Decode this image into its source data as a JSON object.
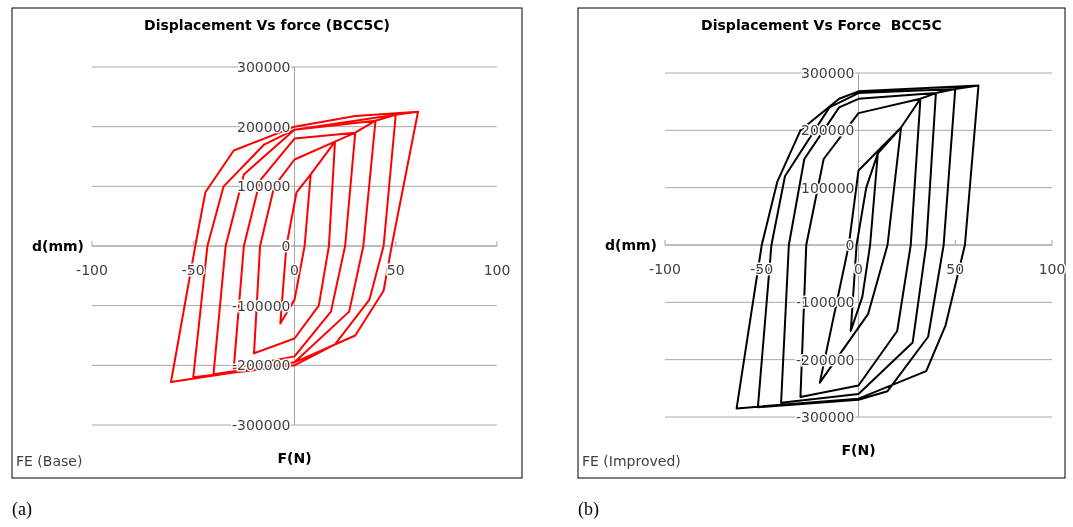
{
  "chart_data": [
    {
      "type": "line",
      "title": "Displacement Vs force (BCC5C)",
      "xlabel": "F(N)",
      "ylabel": "d(mm)",
      "annotations": [
        "FE (Base)",
        "(a)"
      ],
      "grid": "y",
      "xlim": [
        -100,
        100
      ],
      "ylim": [
        -300000,
        300000
      ],
      "xticks": [
        -100,
        -50,
        0,
        50,
        100
      ],
      "yticks": [
        -300000,
        -200000,
        -100000,
        0,
        100000,
        200000,
        300000
      ],
      "series": [
        {
          "color": "#ff0000",
          "x": [
            8,
            5,
            0,
            -7,
            -4,
            1,
            8,
            20,
            17,
            12,
            0,
            -20,
            -17,
            -10,
            0,
            20,
            30,
            25,
            18,
            0,
            -30,
            -25,
            -17,
            0,
            30,
            40,
            34,
            27,
            0,
            -40,
            -34,
            -25,
            0,
            40,
            50,
            44,
            37,
            20,
            0,
            -50,
            -43,
            -35,
            -15,
            0,
            50,
            61,
            48,
            44,
            30,
            0,
            -30,
            -61,
            -49,
            -44,
            -30,
            0,
            30,
            61
          ],
          "values": [
            120000,
            0,
            -90000,
            -130000,
            0,
            90000,
            120000,
            175000,
            0,
            -100000,
            -155000,
            -180000,
            0,
            100000,
            145000,
            175000,
            190000,
            0,
            -110000,
            -185000,
            -205000,
            0,
            110000,
            180000,
            190000,
            210000,
            0,
            -110000,
            -195000,
            -215000,
            0,
            120000,
            195000,
            210000,
            220000,
            0,
            -90000,
            -165000,
            -200000,
            -220000,
            0,
            100000,
            170000,
            195000,
            220000,
            225000,
            0,
            -75000,
            -150000,
            -195000,
            -212000,
            -228000,
            0,
            90000,
            160000,
            200000,
            218000,
            225000
          ]
        }
      ]
    },
    {
      "type": "line",
      "title": "Displacement Vs Force  BCC5C",
      "xlabel": "F(N)",
      "ylabel": "d(mm)",
      "annotations": [
        "FE (Improved)",
        "(b)"
      ],
      "grid": "y",
      "xlim": [
        -100,
        100
      ],
      "ylim": [
        -300000,
        300000
      ],
      "xticks": [
        -100,
        -50,
        0,
        50,
        100
      ],
      "yticks": [
        -300000,
        -200000,
        -100000,
        0,
        100000,
        200000,
        300000
      ],
      "series": [
        {
          "color": "#000000",
          "x": [
            10,
            6,
            2,
            -4,
            -1,
            4,
            10,
            22,
            15,
            5,
            -20,
            -5,
            0,
            22,
            32,
            27,
            20,
            0,
            -30,
            -27,
            -18,
            0,
            32,
            40,
            35,
            28,
            0,
            -40,
            -36,
            -28,
            -10,
            0,
            40,
            50,
            44,
            36,
            15,
            0,
            -52,
            -45,
            -38,
            -15,
            0,
            50,
            62,
            55,
            45,
            35,
            0,
            -63,
            -50,
            -42,
            -30,
            -10,
            0,
            62
          ],
          "values": [
            160000,
            0,
            -90000,
            -150000,
            0,
            100000,
            160000,
            205000,
            0,
            -120000,
            -240000,
            0,
            130000,
            205000,
            255000,
            0,
            -150000,
            -245000,
            -265000,
            0,
            150000,
            230000,
            255000,
            265000,
            0,
            -170000,
            -260000,
            -275000,
            0,
            150000,
            240000,
            255000,
            265000,
            272000,
            0,
            -160000,
            -255000,
            -270000,
            -283000,
            0,
            120000,
            240000,
            265000,
            272000,
            278000,
            0,
            -140000,
            -220000,
            -268000,
            -285000,
            0,
            110000,
            200000,
            255000,
            268000,
            278000
          ]
        }
      ]
    }
  ]
}
